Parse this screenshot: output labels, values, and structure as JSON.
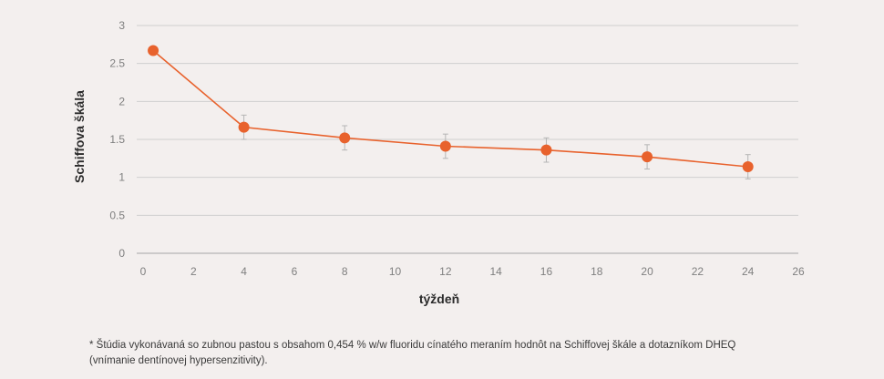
{
  "chart_data": {
    "type": "line",
    "xlabel": "týždeň",
    "ylabel": "Schiffova škála",
    "xlim": [
      0,
      26
    ],
    "ylim": [
      0,
      3
    ],
    "xticks": [
      "0",
      "2",
      "4",
      "6",
      "8",
      "10",
      "12",
      "14",
      "16",
      "18",
      "20",
      "22",
      "24",
      "26"
    ],
    "yticks": [
      "0",
      "0.5",
      "1",
      "1.5",
      "2",
      "2.5",
      "3"
    ],
    "grid": true,
    "color": "#e8622d",
    "series": [
      {
        "x": [
          0.4,
          4,
          8,
          12,
          16,
          20,
          24
        ],
        "y": [
          2.67,
          1.66,
          1.52,
          1.41,
          1.36,
          1.27,
          1.14
        ],
        "err": [
          0,
          0.16,
          0.16,
          0.16,
          0.16,
          0.16,
          0.16
        ]
      }
    ]
  },
  "footnote": {
    "line1": "* Štúdia vykonávaná so zubnou pastou s obsahom 0,454 % w/w fluoridu cínatého meraním hodnôt na Schiffovej škále a dotazníkom DHEQ",
    "line2": "(vnímanie dentínovej hypersenzitivity)."
  }
}
